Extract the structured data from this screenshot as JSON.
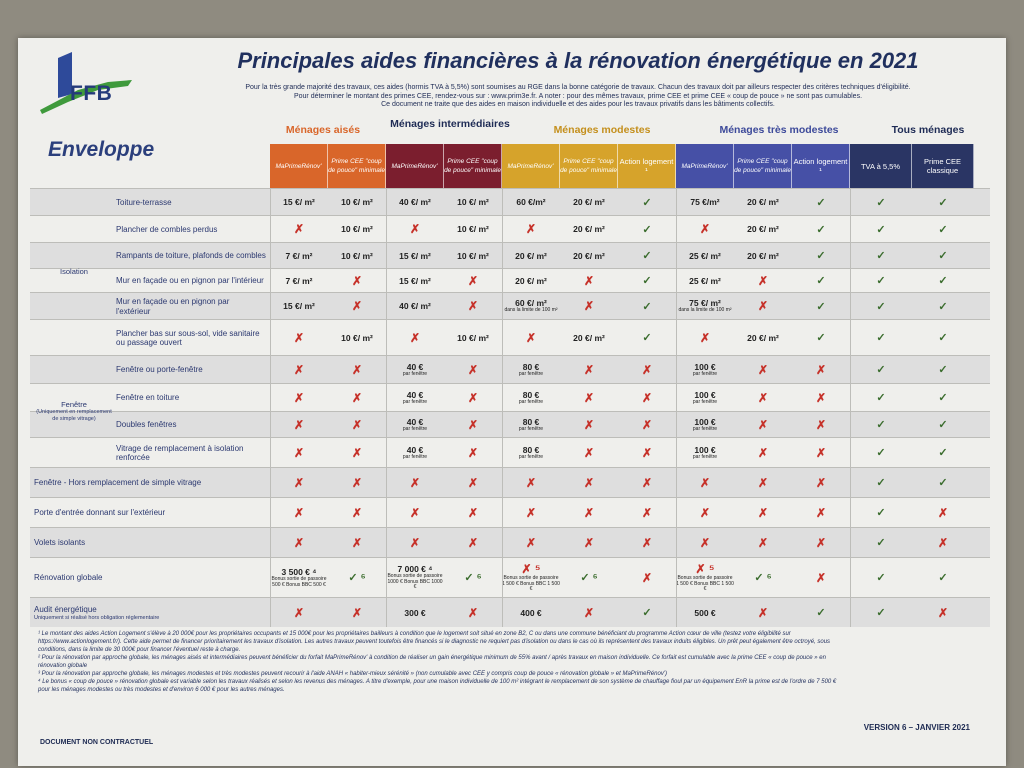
{
  "title": "Principales aides financières à la rénovation énergétique en 2021",
  "logo_text": "FFB",
  "intro": [
    "Pour la très grande majorité des travaux, ces aides (hormis TVA à 5,5%) sont soumises au RGE dans la bonne catégorie de travaux. Chacun des travaux doit par ailleurs respecter des critères techniques d'éligibilité.",
    "Pour déterminer le montant des primes CEE, rendez-vous sur : www.prim3e.fr. A noter : pour des mêmes travaux, prime CEE et prime CEE « coup de pouce » ne sont pas cumulables.",
    "Ce document ne traite que des aides en maison individuelle et des aides pour les travaux privatifs dans les bâtiments collectifs."
  ],
  "enveloppe": "Enveloppe",
  "groups": [
    "Ménages aisés",
    "Ménages intermédiaires",
    "Ménages modestes",
    "Ménages très modestes",
    "Tous ménages"
  ],
  "colors": {
    "aises": "#d9662a",
    "inter": "#7b1e2e",
    "modestes": "#d6a32b",
    "tres": "#4650a6",
    "tous": "#2a3564"
  },
  "columns": [
    "MaPrimeRénov'",
    "Prime CEE \"coup de pouce\" minimale",
    "MaPrimeRénov'",
    "Prime CEE \"coup de pouce\" minimale",
    "MaPrimeRénov'",
    "Prime CEE \"coup de pouce\" minimale",
    "Action logement ¹",
    "MaPrimeRénov'",
    "Prime CEE \"coup de pouce\" minimale",
    "Action logement ¹",
    "TVA à 5,5%",
    "Prime CEE classique"
  ],
  "categories": {
    "isolation": "Isolation",
    "fenetre": "Fenêtre",
    "fenetre_sub": "(Uniquement en remplacement de simple vitrage)"
  },
  "rows": [
    {
      "label": "Toiture-terrasse",
      "cells": [
        "15 €/ m²",
        "10 €/ m²",
        "40 €/ m²",
        "10 €/ m²",
        "60 €/m²",
        "20 €/ m²",
        "✓",
        "75 €/m²",
        "20 €/ m²",
        "✓",
        "✓",
        "✓"
      ]
    },
    {
      "label": "Plancher de combles perdus",
      "cells": [
        "✗",
        "10 €/ m²",
        "✗",
        "10 €/ m²",
        "✗",
        "20 €/ m²",
        "✓",
        "✗",
        "20 €/ m²",
        "✓",
        "✓",
        "✓"
      ]
    },
    {
      "label": "Rampants de toiture, plafonds de combles",
      "cells": [
        "7 €/ m²",
        "10 €/ m²",
        "15 €/ m²",
        "10 €/ m²",
        "20 €/ m²",
        "20 €/ m²",
        "✓",
        "25 €/ m²",
        "20 €/ m²",
        "✓",
        "✓",
        "✓"
      ]
    },
    {
      "label": "Mur en façade ou en pignon par l'intérieur",
      "cells": [
        "7 €/ m²",
        "✗",
        "15 €/ m²",
        "✗",
        "20 €/ m²",
        "✗",
        "✓",
        "25 €/ m²",
        "✗",
        "✓",
        "✓",
        "✓"
      ]
    },
    {
      "label": "Mur en façade ou en pignon par l'extérieur",
      "cells": [
        "15 €/ m²",
        "✗",
        "40 €/ m²",
        "✗",
        "60 €/ m²|dans la limite de 100 m²",
        "✗",
        "✓",
        "75 €/ m²|dans la limite de 100 m²",
        "✗",
        "✓",
        "✓",
        "✓"
      ]
    },
    {
      "label": "Plancher bas sur sous-sol, vide sanitaire ou passage ouvert",
      "cells": [
        "✗",
        "10 €/ m²",
        "✗",
        "10 €/ m²",
        "✗",
        "20 €/ m²",
        "✓",
        "✗",
        "20 €/ m²",
        "✓",
        "✓",
        "✓"
      ]
    },
    {
      "label": "Fenêtre ou porte-fenêtre",
      "cells": [
        "✗",
        "✗",
        "40 €|par fenêtre",
        "✗",
        "80 €|par fenêtre",
        "✗",
        "✗",
        "100 €|par fenêtre",
        "✗",
        "✗",
        "✓",
        "✓"
      ]
    },
    {
      "label": "Fenêtre en toiture",
      "cells": [
        "✗",
        "✗",
        "40 €|par fenêtre",
        "✗",
        "80 €|par fenêtre",
        "✗",
        "✗",
        "100 €|par fenêtre",
        "✗",
        "✗",
        "✓",
        "✓"
      ]
    },
    {
      "label": "Doubles fenêtres",
      "cells": [
        "✗",
        "✗",
        "40 €|par fenêtre",
        "✗",
        "80 €|par fenêtre",
        "✗",
        "✗",
        "100 €|par fenêtre",
        "✗",
        "✗",
        "✓",
        "✓"
      ]
    },
    {
      "label": "Vitrage de remplacement à isolation renforcée",
      "cells": [
        "✗",
        "✗",
        "40 €|par fenêtre",
        "✗",
        "80 €|par fenêtre",
        "✗",
        "✗",
        "100 €|par fenêtre",
        "✗",
        "✗",
        "✓",
        "✓"
      ]
    },
    {
      "label": "Fenêtre - Hors remplacement de simple vitrage",
      "cells": [
        "✗",
        "✗",
        "✗",
        "✗",
        "✗",
        "✗",
        "✗",
        "✗",
        "✗",
        "✗",
        "✓",
        "✓"
      ]
    },
    {
      "label": "Porte d'entrée donnant sur l'extérieur",
      "cells": [
        "✗",
        "✗",
        "✗",
        "✗",
        "✗",
        "✗",
        "✗",
        "✗",
        "✗",
        "✗",
        "✓",
        "✗"
      ]
    },
    {
      "label": "Volets isolants",
      "cells": [
        "✗",
        "✗",
        "✗",
        "✗",
        "✗",
        "✗",
        "✗",
        "✗",
        "✗",
        "✗",
        "✓",
        "✗"
      ]
    },
    {
      "label": "Rénovation globale",
      "cells": [
        "3 500 € ⁴|Bonus sortie de passoire 500 € Bonus BBC 500 €",
        "✓ ⁶",
        "7 000 € ⁴|Bonus sortie de passoire 1000 € Bonus BBC 1000 €",
        "✓ ⁶",
        "✗ ⁵|Bonus sortie de passoire 1 500 € Bonus BBC 1 500 €",
        "✓ ⁶",
        "✗",
        "✗ ⁵|Bonus sortie de passoire 1 500 € Bonus BBC 1 500 €",
        "✓ ⁶",
        "✗",
        "✓",
        "✓"
      ]
    },
    {
      "label": "Audit énergétique",
      "sublabel": "Uniquement si réalisé hors obligation réglementaire",
      "cells": [
        "✗",
        "✗",
        "300 €",
        "✗",
        "400 €",
        "✗",
        "✓",
        "500 €",
        "✗",
        "✓",
        "✓",
        "✗"
      ]
    }
  ],
  "notes": [
    "¹ Le montant des aides Action Logement s'élève à 20 000€ pour les propriétaires occupants et 15 000€ pour les propriétaires bailleurs à condition que le logement soit situé en zone B2, C ou dans une commune bénéficiant du programme Action cœur de ville (testez votre éligibilité sur",
    "https://www.actionlogement.fr/). Cette aide permet de financer prioritairement les travaux d'isolation. Les autres travaux peuvent toutefois être financés si le diagnostic ne requiert pas d'isolation ou dans le cas où ils représentent des travaux induits éligibles. Un prêt peut également être octroyé, sous",
    "conditions, dans la limite de 30 000€ pour financer l'éventuel reste à charge.",
    "² Pour la rénovation par approche globale, les ménages aisés et intermédiaires peuvent bénéficier du forfait MaPrimeRénov' à condition de réaliser un gain énergétique minimum de 55% avant / après travaux en maison individuelle. Ce forfait est cumulable avec la prime CEE « coup de pouce » en",
    "rénovation globale",
    "³ Pour la rénovation par approche globale, les ménages modestes et très modestes peuvent recourir à l'aide ANAH « habiter-mieux sérénité » (non cumulable avec CEE y compris coup de pouce « rénovation globale » et MaPrimeRénov')",
    "⁴ Le bonus « coup de pouce » rénovation globale est variable selon les travaux réalisés et selon les revenus des ménages. A titre d'exemple, pour une maison individuelle de 100 m² intégrant le remplacement de son système de chauffage fioul par un équipement EnR la prime est de l'ordre de 7 500 €",
    "pour les ménages modestes ou très modestes et d'environ 6 000 € pour les autres ménages."
  ],
  "version": "VERSION 6 – JANVIER 2021",
  "footer": "DOCUMENT NON CONTRACTUEL"
}
